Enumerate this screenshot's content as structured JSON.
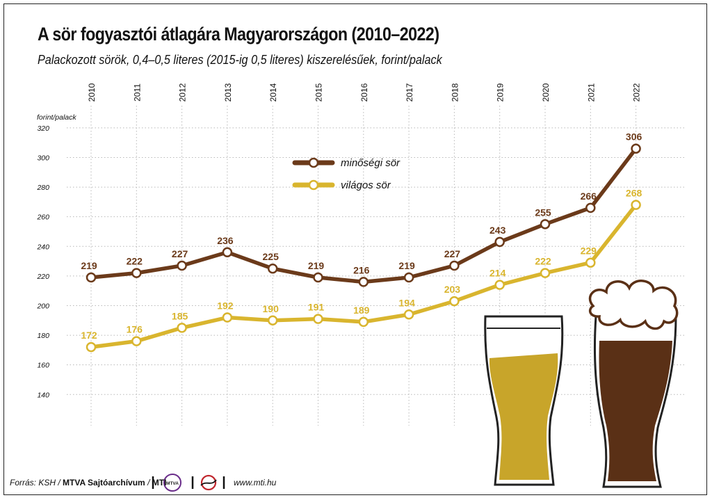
{
  "title": "A sör fogyasztói átlagára Magyarországon (2010–2022)",
  "subtitle": "Palackozott sörök, 0,4–0,5 literes (2015-ig 0,5 literes) kiszerelésűek, forint/palack",
  "footer": {
    "source_prefix": "Forrás: KSH /",
    "source_bold": "MTVA Sajtóarchívum",
    "source_sep": "/",
    "source_mti": "MTI",
    "logo_mtva": "MTVA",
    "website": "www.mti.hu"
  },
  "colors": {
    "minosegi": "#6b3a1a",
    "vilagos": "#d9b52e",
    "grid": "#b8b8b8",
    "dark_beer": "#5a3016",
    "light_beer": "#c8a52a",
    "text": "#111111"
  },
  "chart_data": {
    "type": "line",
    "x": [
      "2010",
      "2011",
      "2012",
      "2013",
      "2014",
      "2015",
      "2016",
      "2017",
      "2018",
      "2019",
      "2020",
      "2021",
      "2022"
    ],
    "ylabel": "forint/palack",
    "ylim": [
      120,
      320
    ],
    "yticks": [
      140,
      160,
      180,
      200,
      220,
      240,
      260,
      280,
      300,
      320
    ],
    "grid": "dotted vertical and horizontal",
    "legend_position": "upper center",
    "series": [
      {
        "name": "minőségi sör",
        "color": "#6b3a1a",
        "values": [
          219,
          222,
          227,
          236,
          225,
          219,
          216,
          219,
          227,
          243,
          255,
          266,
          306
        ]
      },
      {
        "name": "világos sör",
        "color": "#d9b52e",
        "values": [
          172,
          176,
          185,
          192,
          190,
          191,
          189,
          194,
          203,
          214,
          222,
          229,
          268
        ]
      }
    ]
  }
}
